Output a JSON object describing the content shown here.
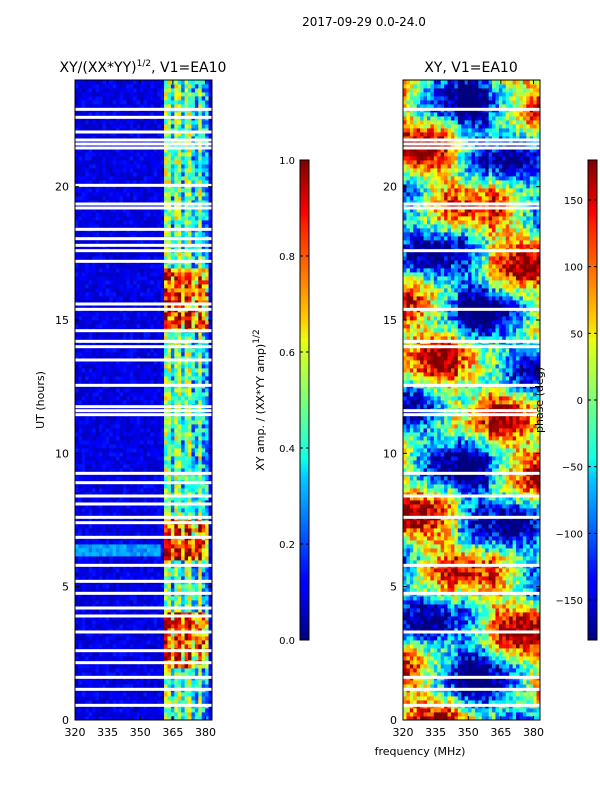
{
  "figure": {
    "suptitle": "2017-09-29 0.0-24.0",
    "shared_xlabel": "frequency (MHz)"
  },
  "chart_data": [
    {
      "type": "heatmap",
      "title_main": "XY/(XX*YY)",
      "title_sup": "1/2",
      "title_rest": ", V1=EA10",
      "xlabel": "frequency (MHz)",
      "ylabel": "UT (hours)",
      "xlim": [
        320,
        383
      ],
      "ylim": [
        0,
        24
      ],
      "xticks": [
        320,
        335,
        350,
        365,
        380
      ],
      "yticks": [
        0,
        5,
        10,
        15,
        20
      ],
      "colorscale": "jet",
      "colorbar": {
        "label_main": "XY amp. / (XX*YY amp)",
        "label_sup": "1/2",
        "range": [
          0.0,
          1.0
        ],
        "ticks": [
          "0.0",
          "0.2",
          "0.4",
          "0.6",
          "0.8",
          "1.0"
        ],
        "tick_values": [
          0.0,
          0.2,
          0.4,
          0.6,
          0.8,
          1.0
        ]
      },
      "flagged_hours": [
        0.55,
        1.15,
        1.6,
        2.15,
        2.6,
        3.3,
        3.9,
        4.2,
        4.75,
        5.2,
        5.8,
        6.85,
        7.4,
        7.6,
        8.1,
        8.4,
        8.9,
        9.25,
        11.45,
        11.6,
        11.75,
        12.55,
        13.5,
        14.0,
        14.2,
        14.6,
        15.4,
        15.6,
        17.2,
        17.6,
        17.8,
        18.05,
        18.4,
        19.2,
        19.35,
        20.05,
        21.45,
        21.6,
        21.75,
        22.05,
        22.6,
        22.9
      ]
    },
    {
      "type": "heatmap",
      "title": "XY, V1=EA10",
      "xlabel": "frequency (MHz)",
      "ylabel": "",
      "xlim": [
        320,
        383
      ],
      "ylim": [
        0,
        24
      ],
      "xticks": [
        320,
        335,
        350,
        365,
        380
      ],
      "yticks": [
        0,
        5,
        10,
        15,
        20
      ],
      "colorscale": "jet",
      "colorbar": {
        "label": "phase (deg)",
        "range": [
          -180,
          180
        ],
        "ticks": [
          "−150",
          "−100",
          "−50",
          "0",
          "50",
          "100",
          "150"
        ],
        "tick_values": [
          -150,
          -100,
          -50,
          0,
          50,
          100,
          150
        ]
      },
      "flagged_hours": [
        0.55,
        1.15,
        1.6,
        3.3,
        4.75,
        5.8,
        7.6,
        8.4,
        9.25,
        11.45,
        11.6,
        12.55,
        14.0,
        14.2,
        15.4,
        17.6,
        19.2,
        19.35,
        21.45,
        21.6,
        21.75,
        22.9
      ]
    }
  ]
}
